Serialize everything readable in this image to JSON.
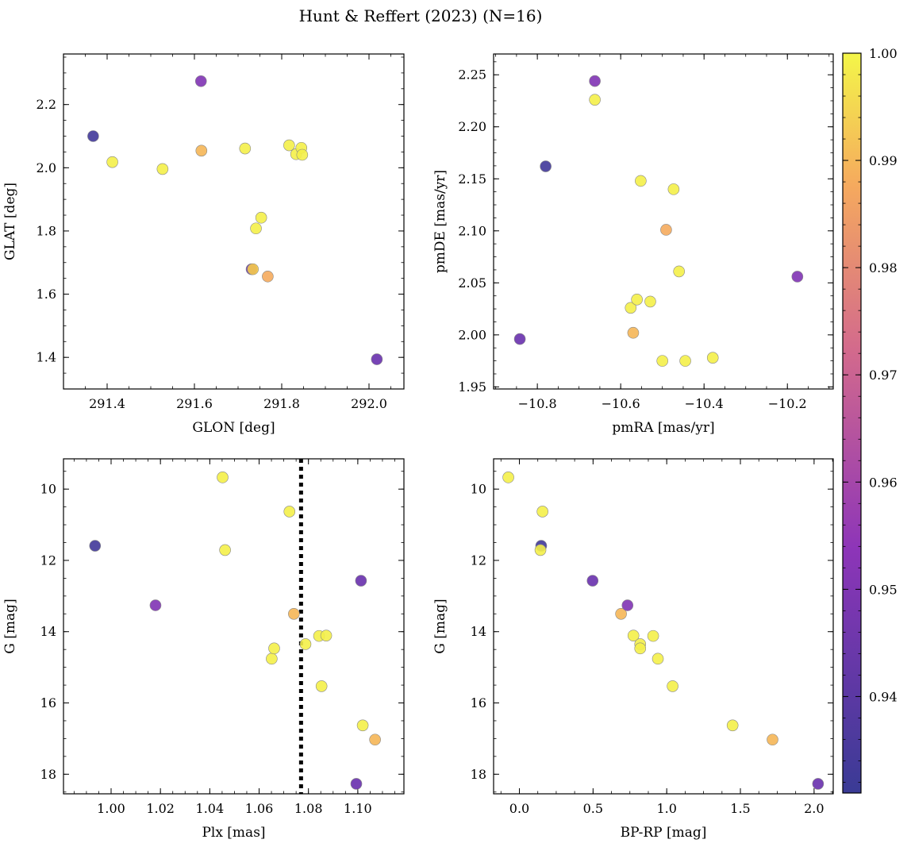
{
  "figure_title": "Hunt & Reffert (2023) (N=16)",
  "colorbar": {
    "min": 0.931,
    "max": 1.0,
    "ticks": [
      0.94,
      0.95,
      0.96,
      0.97,
      0.98,
      0.99,
      1.0
    ],
    "tick_labels": [
      "0.94",
      "0.95",
      "0.96",
      "0.97",
      "0.98",
      "0.99",
      "1.00"
    ],
    "colormap": "plasma"
  },
  "chart_data": [
    {
      "type": "scatter",
      "id": "glon-glat",
      "xlabel": "GLON [deg]",
      "ylabel": "GLAT [deg]",
      "xlim": [
        291.3,
        292.08
      ],
      "ylim": [
        1.3,
        2.36
      ],
      "invert_y": false,
      "xticks": [
        291.4,
        291.6,
        291.8,
        292.0
      ],
      "xtick_labels": [
        "291.4",
        "291.6",
        "291.8",
        "292.0"
      ],
      "yticks": [
        1.4,
        1.6,
        1.8,
        2.0,
        2.2
      ],
      "ytick_labels": [
        "1.4",
        "1.6",
        "1.8",
        "2.0",
        "2.2"
      ],
      "points": [
        {
          "x": 291.368,
          "y": 2.1,
          "c": 0.933
        },
        {
          "x": 291.412,
          "y": 2.018,
          "c": 0.999
        },
        {
          "x": 291.527,
          "y": 1.996,
          "c": 0.999
        },
        {
          "x": 291.615,
          "y": 2.274,
          "c": 0.95
        },
        {
          "x": 291.616,
          "y": 2.054,
          "c": 0.99
        },
        {
          "x": 291.716,
          "y": 2.061,
          "c": 0.999
        },
        {
          "x": 291.731,
          "y": 1.679,
          "c": 0.944
        },
        {
          "x": 291.734,
          "y": 1.679,
          "c": 0.994
        },
        {
          "x": 291.741,
          "y": 1.808,
          "c": 0.999
        },
        {
          "x": 291.753,
          "y": 1.842,
          "c": 0.999
        },
        {
          "x": 291.768,
          "y": 1.656,
          "c": 0.988
        },
        {
          "x": 291.817,
          "y": 2.071,
          "c": 0.999
        },
        {
          "x": 291.833,
          "y": 2.043,
          "c": 0.999
        },
        {
          "x": 291.845,
          "y": 2.063,
          "c": 0.999
        },
        {
          "x": 291.847,
          "y": 2.041,
          "c": 0.999
        },
        {
          "x": 292.018,
          "y": 1.394,
          "c": 0.944
        }
      ]
    },
    {
      "type": "scatter",
      "id": "pmra-pmde",
      "xlabel": "pmRA [mas/yr]",
      "ylabel": "pmDE [mas/yr]",
      "xlim": [
        -10.905,
        -10.09
      ],
      "ylim": [
        1.948,
        2.27
      ],
      "invert_y": false,
      "xticks": [
        -10.8,
        -10.6,
        -10.4,
        -10.2
      ],
      "xtick_labels": [
        "−10.8",
        "−10.6",
        "−10.4",
        "−10.2"
      ],
      "yticks": [
        1.95,
        2.0,
        2.05,
        2.1,
        2.15,
        2.2,
        2.25
      ],
      "ytick_labels": [
        "1.95",
        "2.00",
        "2.05",
        "2.10",
        "2.15",
        "2.20",
        "2.25"
      ],
      "points": [
        {
          "x": -10.842,
          "y": 1.996,
          "c": 0.944
        },
        {
          "x": -10.78,
          "y": 2.162,
          "c": 0.933
        },
        {
          "x": -10.662,
          "y": 2.244,
          "c": 0.95
        },
        {
          "x": -10.662,
          "y": 2.226,
          "c": 0.999
        },
        {
          "x": -10.576,
          "y": 2.026,
          "c": 0.999
        },
        {
          "x": -10.57,
          "y": 2.002,
          "c": 0.99
        },
        {
          "x": -10.561,
          "y": 2.034,
          "c": 0.999
        },
        {
          "x": -10.552,
          "y": 2.148,
          "c": 0.999
        },
        {
          "x": -10.529,
          "y": 2.032,
          "c": 0.999
        },
        {
          "x": -10.5,
          "y": 1.975,
          "c": 0.999
        },
        {
          "x": -10.491,
          "y": 2.101,
          "c": 0.988
        },
        {
          "x": -10.473,
          "y": 2.14,
          "c": 0.999
        },
        {
          "x": -10.46,
          "y": 2.061,
          "c": 0.999
        },
        {
          "x": -10.445,
          "y": 1.975,
          "c": 0.999
        },
        {
          "x": -10.379,
          "y": 1.978,
          "c": 0.999
        },
        {
          "x": -10.176,
          "y": 2.056,
          "c": 0.95
        }
      ]
    },
    {
      "type": "scatter",
      "id": "plx-g",
      "xlabel": "Plx [mas]",
      "ylabel": "G [mag]",
      "xlim": [
        0.9807,
        1.1187
      ],
      "ylim": [
        9.15,
        18.55
      ],
      "invert_y": true,
      "xticks": [
        1.0,
        1.02,
        1.04,
        1.06,
        1.08,
        1.1
      ],
      "xtick_labels": [
        "1.00",
        "1.02",
        "1.04",
        "1.06",
        "1.08",
        "1.10"
      ],
      "yticks": [
        10,
        12,
        14,
        16,
        18
      ],
      "ytick_labels": [
        "10",
        "12",
        "14",
        "16",
        "18"
      ],
      "vline": 1.077,
      "points": [
        {
          "x": 0.9935,
          "y": 11.59,
          "c": 0.933
        },
        {
          "x": 1.018,
          "y": 13.26,
          "c": 0.95
        },
        {
          "x": 1.0452,
          "y": 9.67,
          "c": 0.999
        },
        {
          "x": 1.0462,
          "y": 11.71,
          "c": 0.999
        },
        {
          "x": 1.0651,
          "y": 14.76,
          "c": 0.999
        },
        {
          "x": 1.0661,
          "y": 14.47,
          "c": 0.999
        },
        {
          "x": 1.0723,
          "y": 10.63,
          "c": 0.999
        },
        {
          "x": 1.0741,
          "y": 13.5,
          "c": 0.99
        },
        {
          "x": 1.0788,
          "y": 14.35,
          "c": 0.999
        },
        {
          "x": 1.0843,
          "y": 14.12,
          "c": 0.999
        },
        {
          "x": 1.0853,
          "y": 15.53,
          "c": 0.999
        },
        {
          "x": 1.0872,
          "y": 14.11,
          "c": 0.999
        },
        {
          "x": 1.0994,
          "y": 18.27,
          "c": 0.944
        },
        {
          "x": 1.1013,
          "y": 12.57,
          "c": 0.944
        },
        {
          "x": 1.102,
          "y": 16.63,
          "c": 0.999
        },
        {
          "x": 1.107,
          "y": 17.03,
          "c": 0.99
        }
      ]
    },
    {
      "type": "scatter",
      "id": "bprp-g",
      "xlabel": "BP-RP [mag]",
      "ylabel": "G [mag]",
      "xlim": [
        -0.175,
        2.13
      ],
      "ylim": [
        9.15,
        18.55
      ],
      "invert_y": true,
      "xticks": [
        0.0,
        0.5,
        1.0,
        1.5,
        2.0
      ],
      "xtick_labels": [
        "0.0",
        "0.5",
        "1.0",
        "1.5",
        "2.0"
      ],
      "yticks": [
        10,
        12,
        14,
        16,
        18
      ],
      "ytick_labels": [
        "10",
        "12",
        "14",
        "16",
        "18"
      ],
      "points": [
        {
          "x": -0.075,
          "y": 9.67,
          "c": 0.999
        },
        {
          "x": 0.148,
          "y": 11.59,
          "c": 0.933
        },
        {
          "x": 0.143,
          "y": 11.71,
          "c": 0.999
        },
        {
          "x": 0.157,
          "y": 10.63,
          "c": 0.999
        },
        {
          "x": 0.497,
          "y": 12.57,
          "c": 0.944
        },
        {
          "x": 0.69,
          "y": 13.5,
          "c": 0.99
        },
        {
          "x": 0.734,
          "y": 13.26,
          "c": 0.95
        },
        {
          "x": 0.774,
          "y": 14.11,
          "c": 0.999
        },
        {
          "x": 0.82,
          "y": 14.35,
          "c": 0.999
        },
        {
          "x": 0.82,
          "y": 14.47,
          "c": 0.999
        },
        {
          "x": 0.908,
          "y": 14.12,
          "c": 0.999
        },
        {
          "x": 0.94,
          "y": 14.76,
          "c": 0.999
        },
        {
          "x": 1.04,
          "y": 15.53,
          "c": 0.999
        },
        {
          "x": 1.447,
          "y": 16.63,
          "c": 0.999
        },
        {
          "x": 1.718,
          "y": 17.03,
          "c": 0.99
        },
        {
          "x": 2.027,
          "y": 18.27,
          "c": 0.944
        }
      ]
    }
  ]
}
